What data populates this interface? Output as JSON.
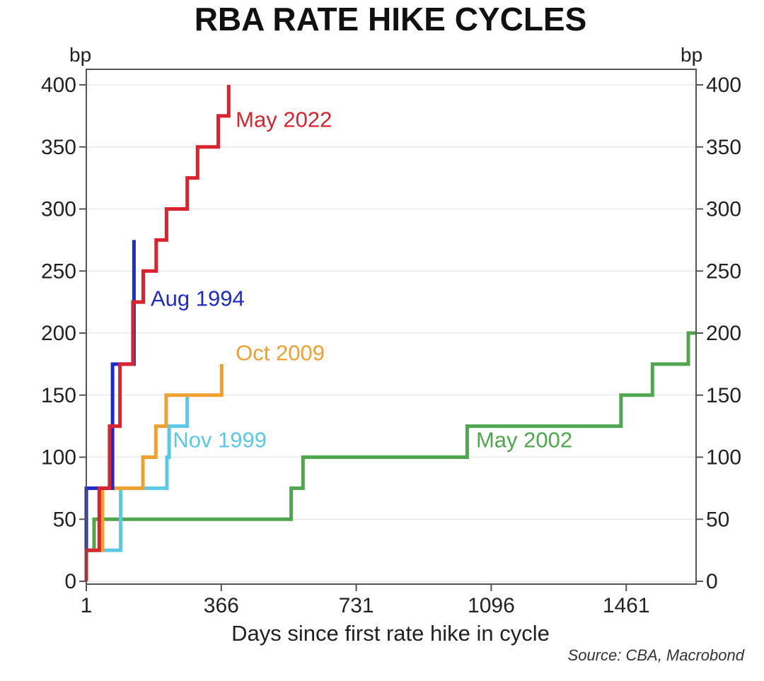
{
  "chart_data": {
    "type": "line",
    "step": true,
    "title": "RBA RATE HIKE CYCLES",
    "xlabel": "Days since first rate hike in cycle",
    "ylabel_left": "bp",
    "ylabel_right": "bp",
    "source": "Source: CBA, Macrobond",
    "xlim": [
      1,
      1650
    ],
    "ylim": [
      0,
      400
    ],
    "xticks": [
      1,
      366,
      731,
      1096,
      1461
    ],
    "yticks": [
      0,
      50,
      100,
      150,
      200,
      250,
      300,
      350,
      400
    ],
    "grid": true,
    "series": [
      {
        "name": "May 2002",
        "color": "#4fa64f",
        "points": [
          [
            1,
            0
          ],
          [
            1,
            25
          ],
          [
            22,
            25
          ],
          [
            22,
            50
          ],
          [
            555,
            50
          ],
          [
            555,
            75
          ],
          [
            587,
            75
          ],
          [
            587,
            100
          ],
          [
            1031,
            100
          ],
          [
            1031,
            125
          ],
          [
            1447,
            125
          ],
          [
            1447,
            150
          ],
          [
            1532,
            150
          ],
          [
            1532,
            175
          ],
          [
            1629,
            175
          ],
          [
            1629,
            200
          ],
          [
            1650,
            200
          ]
        ]
      },
      {
        "name": "Nov 1999",
        "color": "#5bc8e6",
        "points": [
          [
            1,
            0
          ],
          [
            1,
            25
          ],
          [
            94,
            25
          ],
          [
            94,
            75
          ],
          [
            219,
            75
          ],
          [
            219,
            100
          ],
          [
            225,
            100
          ],
          [
            225,
            125
          ],
          [
            274,
            125
          ],
          [
            274,
            150
          ]
        ]
      },
      {
        "name": "Oct 2009",
        "color": "#f0a030",
        "points": [
          [
            1,
            0
          ],
          [
            1,
            25
          ],
          [
            45,
            25
          ],
          [
            45,
            75
          ],
          [
            154,
            75
          ],
          [
            154,
            100
          ],
          [
            189,
            100
          ],
          [
            189,
            125
          ],
          [
            217,
            125
          ],
          [
            217,
            150
          ],
          [
            367,
            150
          ],
          [
            367,
            175
          ]
        ]
      },
      {
        "name": "Aug 1994",
        "color": "#1f2ac8",
        "points": [
          [
            1,
            0
          ],
          [
            1,
            75
          ],
          [
            72,
            75
          ],
          [
            72,
            175
          ],
          [
            130,
            175
          ],
          [
            130,
            275
          ]
        ]
      },
      {
        "name": "May 2022",
        "color": "#d9232e",
        "points": [
          [
            1,
            0
          ],
          [
            1,
            25
          ],
          [
            36,
            25
          ],
          [
            36,
            75
          ],
          [
            64,
            75
          ],
          [
            64,
            125
          ],
          [
            92,
            125
          ],
          [
            92,
            175
          ],
          [
            127,
            175
          ],
          [
            127,
            225
          ],
          [
            155,
            225
          ],
          [
            155,
            250
          ],
          [
            190,
            250
          ],
          [
            190,
            275
          ],
          [
            218,
            275
          ],
          [
            218,
            300
          ],
          [
            274,
            300
          ],
          [
            274,
            325
          ],
          [
            302,
            325
          ],
          [
            302,
            350
          ],
          [
            358,
            350
          ],
          [
            358,
            375
          ],
          [
            386,
            375
          ],
          [
            386,
            400
          ]
        ]
      }
    ],
    "annotations": [
      {
        "series": "May 2022",
        "text": "May 2022",
        "x": 405,
        "y": 366
      },
      {
        "series": "Aug 1994",
        "text": "Aug 1994",
        "x": 175,
        "y": 222
      },
      {
        "series": "Oct 2009",
        "text": "Oct 2009",
        "x": 405,
        "y": 178
      },
      {
        "series": "Nov 1999",
        "text": "Nov 1999",
        "x": 235,
        "y": 108
      },
      {
        "series": "May 2002",
        "text": "May 2002",
        "x": 1055,
        "y": 108
      }
    ]
  }
}
